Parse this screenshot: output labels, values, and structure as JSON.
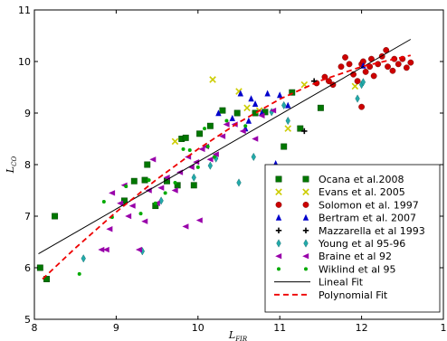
{
  "chart_data": {
    "type": "scatter",
    "xlabel": "L_FIR",
    "ylabel": "L_CO",
    "xlim": [
      8,
      13
    ],
    "ylim": [
      5,
      11
    ],
    "xticks": [
      "8",
      "9",
      "10",
      "11",
      "12",
      "1"
    ],
    "yticks": [
      "5",
      "6",
      "7",
      "8",
      "9",
      "10",
      "11"
    ],
    "grid": false,
    "legend_position": "lower-right",
    "series": [
      {
        "name": "Ocana et al.2008",
        "marker": "square",
        "color": "#007700",
        "points": [
          [
            8.07,
            6.0
          ],
          [
            8.25,
            7.0
          ],
          [
            8.15,
            5.78
          ],
          [
            9.1,
            7.3
          ],
          [
            9.22,
            7.68
          ],
          [
            9.35,
            7.7
          ],
          [
            9.38,
            8.0
          ],
          [
            9.48,
            7.2
          ],
          [
            9.62,
            7.68
          ],
          [
            9.75,
            7.6
          ],
          [
            9.8,
            8.5
          ],
          [
            9.85,
            8.52
          ],
          [
            9.95,
            7.6
          ],
          [
            10.02,
            8.6
          ],
          [
            10.15,
            8.75
          ],
          [
            10.3,
            9.05
          ],
          [
            10.48,
            9.0
          ],
          [
            10.7,
            9.0
          ],
          [
            10.82,
            9.02
          ],
          [
            11.05,
            8.35
          ],
          [
            11.15,
            9.4
          ],
          [
            11.25,
            8.7
          ],
          [
            11.5,
            9.1
          ]
        ]
      },
      {
        "name": "Evans et al. 2005",
        "marker": "x",
        "color": "#cccc00",
        "points": [
          [
            9.72,
            8.45
          ],
          [
            10.18,
            9.65
          ],
          [
            10.5,
            9.42
          ],
          [
            10.6,
            9.1
          ],
          [
            10.75,
            9.05
          ],
          [
            11.1,
            8.7
          ],
          [
            11.3,
            9.55
          ],
          [
            11.92,
            9.52
          ]
        ]
      },
      {
        "name": "Solomon et al. 1997",
        "marker": "circle",
        "color": "#cc0000",
        "points": [
          [
            11.45,
            9.58
          ],
          [
            11.55,
            9.7
          ],
          [
            11.6,
            9.62
          ],
          [
            11.65,
            9.55
          ],
          [
            11.75,
            9.9
          ],
          [
            11.8,
            10.08
          ],
          [
            11.85,
            9.95
          ],
          [
            11.9,
            9.75
          ],
          [
            11.95,
            9.62
          ],
          [
            12.0,
            9.95
          ],
          [
            12.05,
            9.8
          ],
          [
            12.1,
            9.9
          ],
          [
            12.12,
            10.05
          ],
          [
            12.15,
            9.72
          ],
          [
            12.2,
            9.95
          ],
          [
            12.25,
            10.1
          ],
          [
            12.3,
            10.22
          ],
          [
            12.32,
            9.9
          ],
          [
            12.38,
            9.82
          ],
          [
            12.4,
            10.05
          ],
          [
            12.45,
            9.95
          ],
          [
            12.5,
            10.05
          ],
          [
            12.55,
            9.88
          ],
          [
            12.6,
            9.98
          ],
          [
            12.0,
            9.12
          ],
          [
            12.02,
            10.0
          ]
        ]
      },
      {
        "name": "Bertram et al. 2007",
        "marker": "triangle-up",
        "color": "#0000cc",
        "points": [
          [
            10.25,
            9.0
          ],
          [
            10.42,
            8.9
          ],
          [
            10.52,
            9.38
          ],
          [
            10.58,
            8.7
          ],
          [
            10.62,
            8.85
          ],
          [
            10.65,
            9.28
          ],
          [
            10.7,
            9.18
          ],
          [
            10.78,
            9.0
          ],
          [
            10.85,
            9.38
          ],
          [
            10.95,
            8.02
          ],
          [
            11.0,
            9.35
          ],
          [
            11.1,
            9.15
          ],
          [
            12.02,
            9.92
          ]
        ]
      },
      {
        "name": "Mazzarella et al 1993",
        "marker": "plus",
        "color": "#000000",
        "points": [
          [
            11.3,
            8.65
          ],
          [
            11.42,
            9.62
          ]
        ]
      },
      {
        "name": "Young et al 95-96",
        "marker": "diamond",
        "color": "#22aaaa",
        "points": [
          [
            8.6,
            6.18
          ],
          [
            9.32,
            6.32
          ],
          [
            9.55,
            7.3
          ],
          [
            9.95,
            7.75
          ],
          [
            10.15,
            7.98
          ],
          [
            10.22,
            8.12
          ],
          [
            10.5,
            7.65
          ],
          [
            10.68,
            8.15
          ],
          [
            10.9,
            9.02
          ],
          [
            11.05,
            9.15
          ],
          [
            11.1,
            8.85
          ],
          [
            11.95,
            9.28
          ],
          [
            12.0,
            9.55
          ],
          [
            12.02,
            9.6
          ]
        ]
      },
      {
        "name": "Braine et al 92",
        "marker": "triangle-left",
        "color": "#9900aa",
        "points": [
          [
            8.82,
            6.35
          ],
          [
            8.88,
            6.35
          ],
          [
            8.92,
            6.75
          ],
          [
            8.95,
            7.45
          ],
          [
            9.05,
            7.25
          ],
          [
            9.1,
            7.6
          ],
          [
            9.15,
            7.0
          ],
          [
            9.2,
            7.2
          ],
          [
            9.28,
            6.35
          ],
          [
            9.35,
            6.9
          ],
          [
            9.4,
            7.5
          ],
          [
            9.45,
            8.1
          ],
          [
            9.5,
            7.25
          ],
          [
            9.55,
            7.55
          ],
          [
            9.62,
            7.75
          ],
          [
            9.72,
            7.5
          ],
          [
            9.78,
            7.85
          ],
          [
            9.85,
            6.8
          ],
          [
            9.88,
            8.15
          ],
          [
            9.92,
            7.95
          ],
          [
            9.98,
            8.05
          ],
          [
            10.02,
            6.92
          ],
          [
            10.05,
            8.3
          ],
          [
            10.1,
            8.35
          ],
          [
            10.15,
            8.1
          ],
          [
            10.22,
            8.2
          ],
          [
            10.3,
            8.55
          ],
          [
            10.35,
            8.78
          ],
          [
            10.45,
            8.78
          ],
          [
            10.55,
            8.65
          ],
          [
            10.7,
            8.5
          ],
          [
            10.78,
            8.95
          ],
          [
            10.92,
            9.05
          ]
        ]
      },
      {
        "name": "Wiklind et al 95",
        "marker": "dot",
        "color": "#00aa00",
        "points": [
          [
            8.55,
            5.88
          ],
          [
            8.85,
            7.28
          ],
          [
            8.95,
            6.98
          ],
          [
            9.12,
            7.58
          ],
          [
            9.3,
            7.05
          ],
          [
            9.4,
            7.7
          ],
          [
            9.48,
            7.25
          ],
          [
            9.6,
            7.45
          ],
          [
            9.72,
            7.65
          ],
          [
            9.82,
            8.3
          ],
          [
            9.9,
            8.28
          ],
          [
            10.0,
            7.95
          ],
          [
            10.08,
            8.7
          ],
          [
            10.12,
            8.35
          ],
          [
            10.2,
            8.15
          ],
          [
            10.35,
            8.85
          ],
          [
            10.58,
            8.75
          ]
        ]
      }
    ],
    "lines": [
      {
        "name": "Lineal Fit",
        "style": "solid",
        "color": "#000000",
        "x": [
          8.05,
          12.6
        ],
        "y": [
          6.27,
          10.43
        ]
      },
      {
        "name": "Polynomial Fit",
        "style": "dashed",
        "color": "#ee0000",
        "x": [
          8.1,
          8.5,
          9.0,
          9.5,
          10.0,
          10.5,
          11.0,
          11.5,
          12.0,
          12.6
        ],
        "y": [
          5.78,
          6.38,
          7.08,
          7.72,
          8.3,
          8.82,
          9.27,
          9.63,
          9.9,
          10.12
        ]
      }
    ]
  }
}
